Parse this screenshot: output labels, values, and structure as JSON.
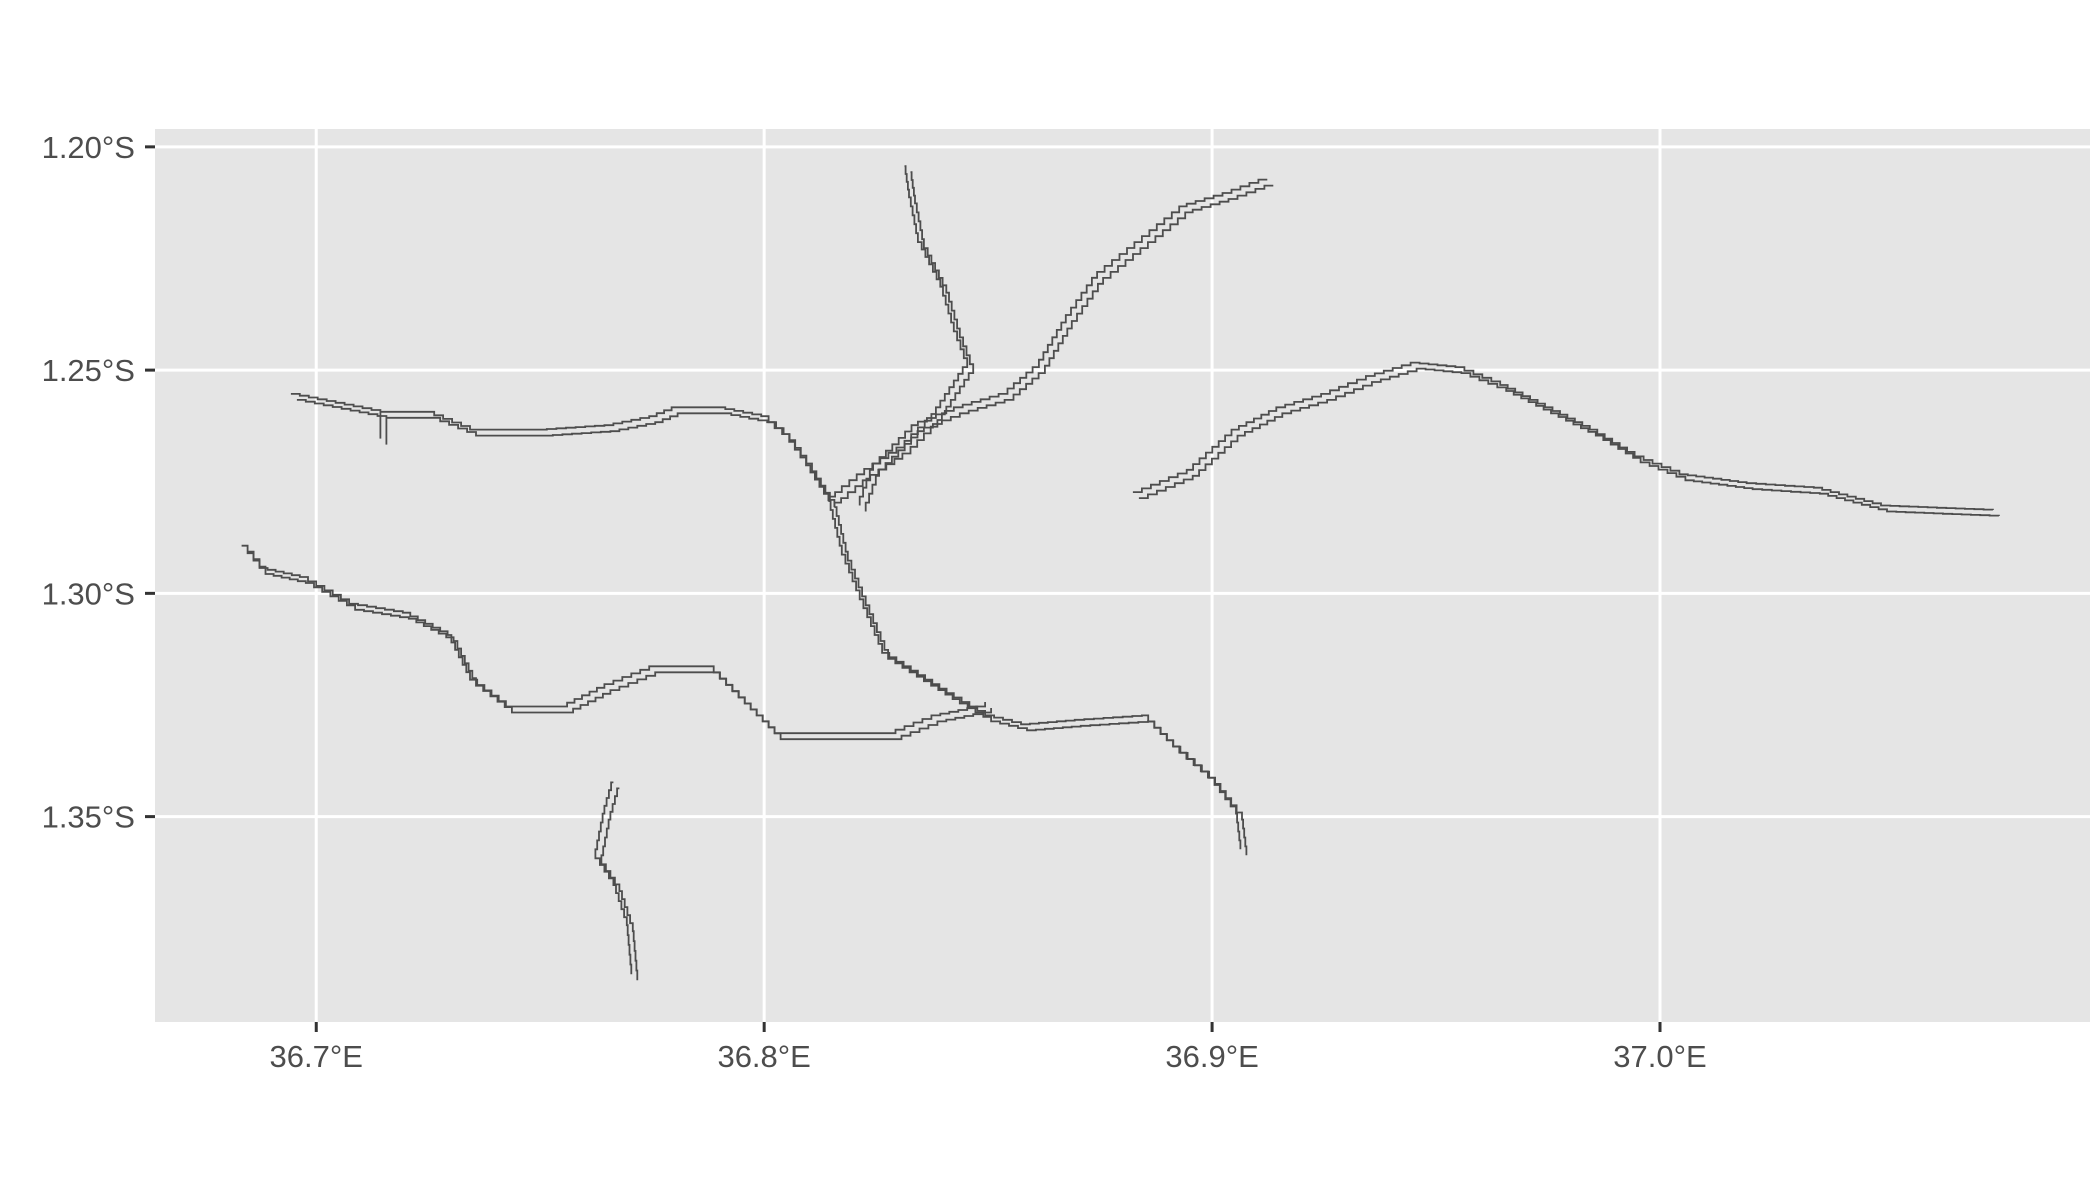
{
  "chart_data": {
    "type": "line",
    "title": "",
    "xlabel": "",
    "ylabel": "",
    "xlim": [
      36.664,
      37.096
    ],
    "ylim": [
      -1.396,
      -1.196
    ],
    "x_ticks": [
      {
        "value": 36.7,
        "label": "36.7°E"
      },
      {
        "value": 36.8,
        "label": "36.8°E"
      },
      {
        "value": 36.9,
        "label": "36.9°E"
      },
      {
        "value": 37.0,
        "label": "37.0°E"
      }
    ],
    "y_ticks": [
      {
        "value": -1.2,
        "label": "1.20°S"
      },
      {
        "value": -1.25,
        "label": "1.25°S"
      },
      {
        "value": -1.3,
        "label": "1.30°S"
      },
      {
        "value": -1.35,
        "label": "1.35°S"
      }
    ],
    "grid": true,
    "legend": "none",
    "colors": {
      "panel_background": "#e5e5e5",
      "grid": "#ffffff",
      "outline": "#4d4d4d",
      "tick_text": "#4d4d4d"
    },
    "series": [
      {
        "id": "river-northwest",
        "points": [
          [
            36.695,
            -1.256
          ],
          [
            36.705,
            -1.258
          ],
          [
            36.715,
            -1.26
          ],
          [
            36.725,
            -1.26
          ],
          [
            36.735,
            -1.264
          ],
          [
            36.75,
            -1.264
          ],
          [
            36.765,
            -1.263
          ],
          [
            36.775,
            -1.261
          ],
          [
            36.78,
            -1.259
          ],
          [
            36.79,
            -1.259
          ],
          [
            36.8,
            -1.261
          ],
          [
            36.805,
            -1.265
          ],
          [
            36.81,
            -1.272
          ],
          [
            36.815,
            -1.28
          ]
        ]
      },
      {
        "id": "river-northwest-stub",
        "points": [
          [
            36.715,
            -1.26
          ],
          [
            36.715,
            -1.266
          ]
        ]
      },
      {
        "id": "river-north-tributary",
        "points": [
          [
            36.832,
            -1.205
          ],
          [
            36.833,
            -1.212
          ],
          [
            36.835,
            -1.222
          ],
          [
            36.84,
            -1.232
          ],
          [
            36.843,
            -1.242
          ],
          [
            36.846,
            -1.25
          ],
          [
            36.842,
            -1.256
          ],
          [
            36.838,
            -1.262
          ],
          [
            36.832,
            -1.268
          ],
          [
            36.823,
            -1.274
          ],
          [
            36.818,
            -1.278
          ],
          [
            36.815,
            -1.28
          ]
        ]
      },
      {
        "id": "river-northeast-tributary",
        "points": [
          [
            36.913,
            -1.208
          ],
          [
            36.905,
            -1.211
          ],
          [
            36.895,
            -1.214
          ],
          [
            36.885,
            -1.222
          ],
          [
            36.875,
            -1.23
          ],
          [
            36.868,
            -1.24
          ],
          [
            36.862,
            -1.25
          ],
          [
            36.855,
            -1.256
          ],
          [
            36.845,
            -1.259
          ],
          [
            36.835,
            -1.263
          ],
          [
            36.825,
            -1.273
          ],
          [
            36.822,
            -1.281
          ]
        ]
      },
      {
        "id": "river-central-main",
        "points": [
          [
            36.815,
            -1.28
          ],
          [
            36.818,
            -1.292
          ],
          [
            36.822,
            -1.302
          ],
          [
            36.827,
            -1.314
          ],
          [
            36.835,
            -1.319
          ],
          [
            36.843,
            -1.324
          ],
          [
            36.85,
            -1.328
          ],
          [
            36.858,
            -1.33
          ],
          [
            36.87,
            -1.329
          ],
          [
            36.885,
            -1.328
          ],
          [
            36.892,
            -1.335
          ],
          [
            36.9,
            -1.342
          ],
          [
            36.906,
            -1.35
          ],
          [
            36.907,
            -1.358
          ]
        ]
      },
      {
        "id": "river-southwest",
        "points": [
          [
            36.684,
            -1.29
          ],
          [
            36.688,
            -1.295
          ],
          [
            36.697,
            -1.297
          ],
          [
            36.708,
            -1.303
          ],
          [
            36.72,
            -1.305
          ],
          [
            36.73,
            -1.31
          ],
          [
            36.735,
            -1.32
          ],
          [
            36.743,
            -1.326
          ],
          [
            36.755,
            -1.326
          ],
          [
            36.765,
            -1.321
          ],
          [
            36.775,
            -1.317
          ],
          [
            36.788,
            -1.317
          ],
          [
            36.795,
            -1.324
          ],
          [
            36.803,
            -1.332
          ],
          [
            36.815,
            -1.332
          ],
          [
            36.828,
            -1.332
          ],
          [
            36.838,
            -1.328
          ],
          [
            36.848,
            -1.326
          ],
          [
            36.85,
            -1.325
          ]
        ]
      },
      {
        "id": "river-east",
        "points": [
          [
            36.883,
            -1.278
          ],
          [
            36.895,
            -1.273
          ],
          [
            36.905,
            -1.264
          ],
          [
            36.915,
            -1.259
          ],
          [
            36.925,
            -1.256
          ],
          [
            36.935,
            -1.252
          ],
          [
            36.945,
            -1.249
          ],
          [
            36.955,
            -1.25
          ],
          [
            36.965,
            -1.254
          ],
          [
            36.975,
            -1.259
          ],
          [
            36.985,
            -1.264
          ],
          [
            36.995,
            -1.27
          ],
          [
            37.005,
            -1.274
          ],
          [
            37.02,
            -1.276
          ],
          [
            37.035,
            -1.277
          ],
          [
            37.05,
            -1.281
          ],
          [
            37.075,
            -1.282
          ]
        ]
      },
      {
        "id": "river-south-stub",
        "points": [
          [
            36.767,
            -1.343
          ],
          [
            36.765,
            -1.35
          ],
          [
            36.763,
            -1.36
          ],
          [
            36.767,
            -1.366
          ],
          [
            36.77,
            -1.375
          ],
          [
            36.771,
            -1.386
          ]
        ]
      }
    ]
  }
}
